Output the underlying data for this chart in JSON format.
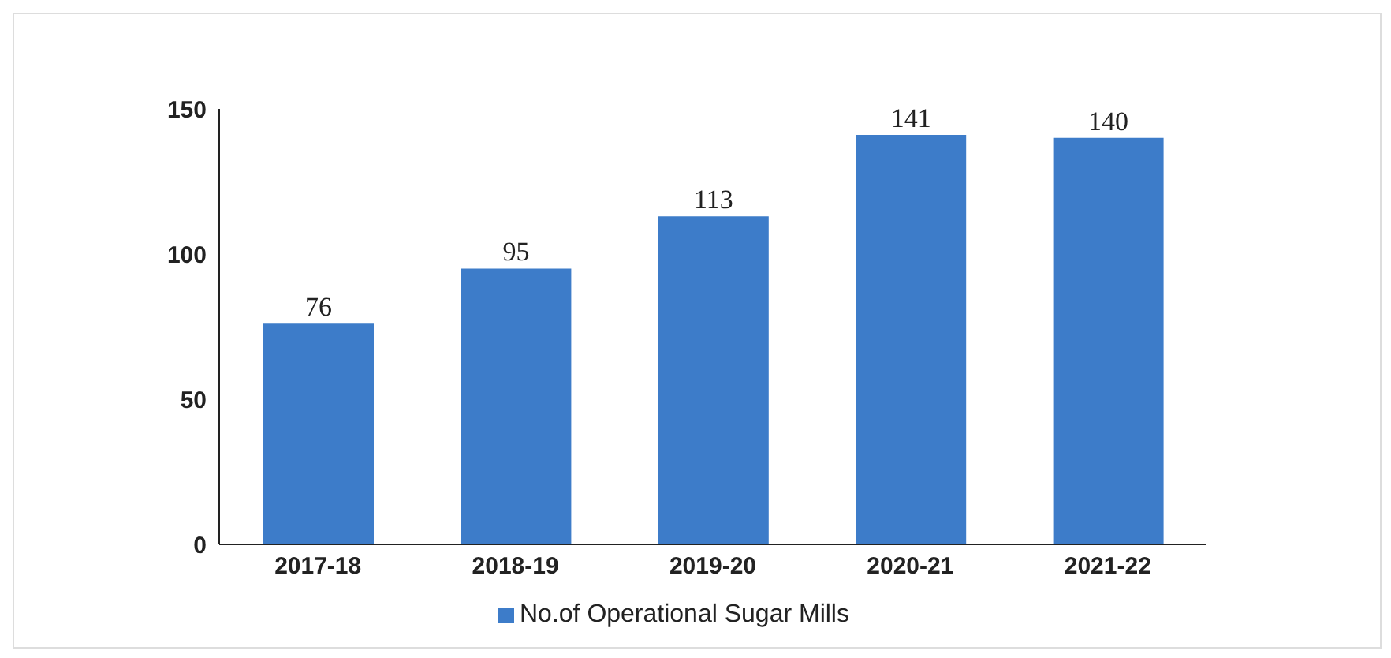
{
  "chart_data": {
    "type": "bar",
    "categories": [
      "2017-18",
      "2018-19",
      "2019-20",
      "2020-21",
      "2021-22"
    ],
    "series": [
      {
        "name": "No.of Operational Sugar Mills",
        "color": "#3d7cc9",
        "values": [
          76,
          95,
          113,
          141,
          140
        ]
      }
    ],
    "ylim": [
      0,
      150
    ],
    "yticks": [
      0,
      50,
      100,
      150
    ],
    "data_labels": true,
    "legend": "bottom",
    "grid": false
  }
}
